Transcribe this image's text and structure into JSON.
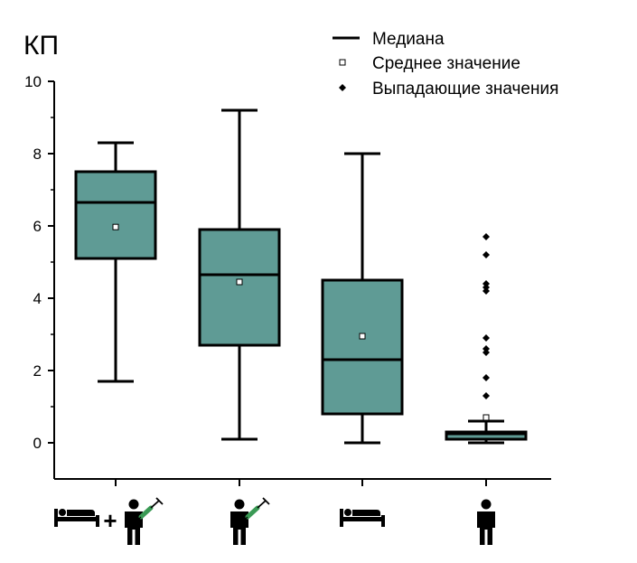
{
  "chart_data": {
    "type": "box",
    "y_title": "КП",
    "ylim": [
      -1,
      10
    ],
    "y_ticks": [
      0,
      2,
      4,
      6,
      8,
      10
    ],
    "grid": false,
    "legend_position": "top-right",
    "box_color": "#5f9b95",
    "legend": {
      "median": "Медиана",
      "mean": "Среднее значение",
      "outliers": "Выпадающие значения"
    },
    "categories": [
      {
        "icon": "bed-plus-vaccinated-person-icon",
        "whisker_low": 1.7,
        "q1": 5.1,
        "median": 6.65,
        "q3": 7.5,
        "whisker_high": 8.3,
        "mean": 5.97,
        "outliers": []
      },
      {
        "icon": "vaccinated-person-icon",
        "whisker_low": 0.1,
        "q1": 2.7,
        "median": 4.65,
        "q3": 5.9,
        "whisker_high": 9.2,
        "mean": 4.45,
        "outliers": []
      },
      {
        "icon": "bed-patient-icon",
        "whisker_low": 0.0,
        "q1": 0.8,
        "median": 2.3,
        "q3": 4.5,
        "whisker_high": 8.0,
        "mean": 2.95,
        "outliers": []
      },
      {
        "icon": "person-icon",
        "whisker_low": 0.0,
        "q1": 0.1,
        "median": 0.25,
        "q3": 0.3,
        "whisker_high": 0.6,
        "mean": 0.7,
        "outliers": [
          1.3,
          1.8,
          2.5,
          2.6,
          2.9,
          4.2,
          4.3,
          4.4,
          5.2,
          5.7
        ]
      }
    ]
  }
}
